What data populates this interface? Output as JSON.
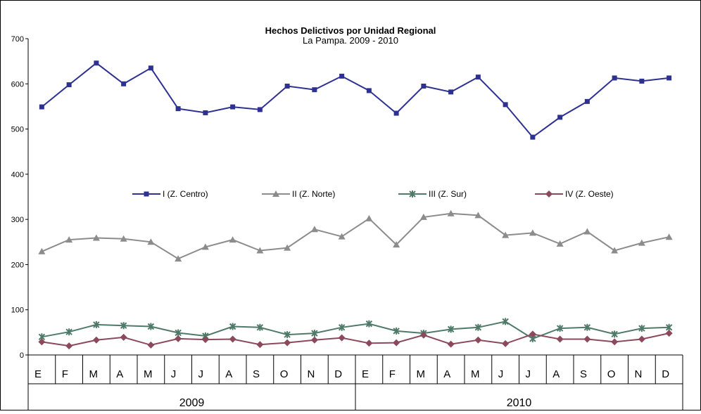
{
  "chart_data": {
    "type": "line",
    "title": "Hechos Delictivos por Unidad Regional",
    "subtitle": "La Pampa. 2009  -  2010",
    "ylim": [
      0,
      700
    ],
    "y_ticks": [
      "0",
      "100",
      "200",
      "300",
      "400",
      "500",
      "600",
      "700"
    ],
    "categories": [
      "E",
      "F",
      "M",
      "A",
      "M",
      "J",
      "J",
      "A",
      "S",
      "O",
      "N",
      "D",
      "E",
      "F",
      "M",
      "A",
      "M",
      "J",
      "J",
      "A",
      "S",
      "O",
      "N",
      "D"
    ],
    "years": [
      "2009",
      "2010"
    ],
    "grid": false,
    "legend_position": "middle",
    "series": [
      {
        "name": "I (Z. Centro)",
        "color": "#2e3192",
        "marker": "square",
        "values": [
          549,
          598,
          646,
          600,
          635,
          545,
          536,
          549,
          543,
          595,
          587,
          617,
          585,
          535,
          595,
          582,
          615,
          554,
          482,
          526,
          561,
          613,
          606,
          613
        ]
      },
      {
        "name": "II (Z. Norte)",
        "color": "#8c8c8c",
        "marker": "triangle",
        "values": [
          229,
          255,
          259,
          257,
          250,
          213,
          239,
          255,
          231,
          237,
          278,
          262,
          302,
          244,
          305,
          313,
          309,
          265,
          270,
          246,
          273,
          231,
          248,
          261
        ]
      },
      {
        "name": "III (Z. Sur)",
        "color": "#4f7a68",
        "marker": "star",
        "values": [
          40,
          51,
          67,
          65,
          63,
          49,
          42,
          63,
          61,
          45,
          48,
          61,
          69,
          53,
          48,
          57,
          61,
          74,
          36,
          59,
          61,
          46,
          59,
          61
        ]
      },
      {
        "name": "IV (Z. Oeste)",
        "color": "#8b4a5c",
        "marker": "diamond",
        "values": [
          29,
          20,
          33,
          39,
          22,
          36,
          34,
          35,
          23,
          27,
          33,
          38,
          26,
          27,
          44,
          24,
          33,
          25,
          46,
          35,
          35,
          29,
          35,
          48
        ]
      }
    ]
  }
}
